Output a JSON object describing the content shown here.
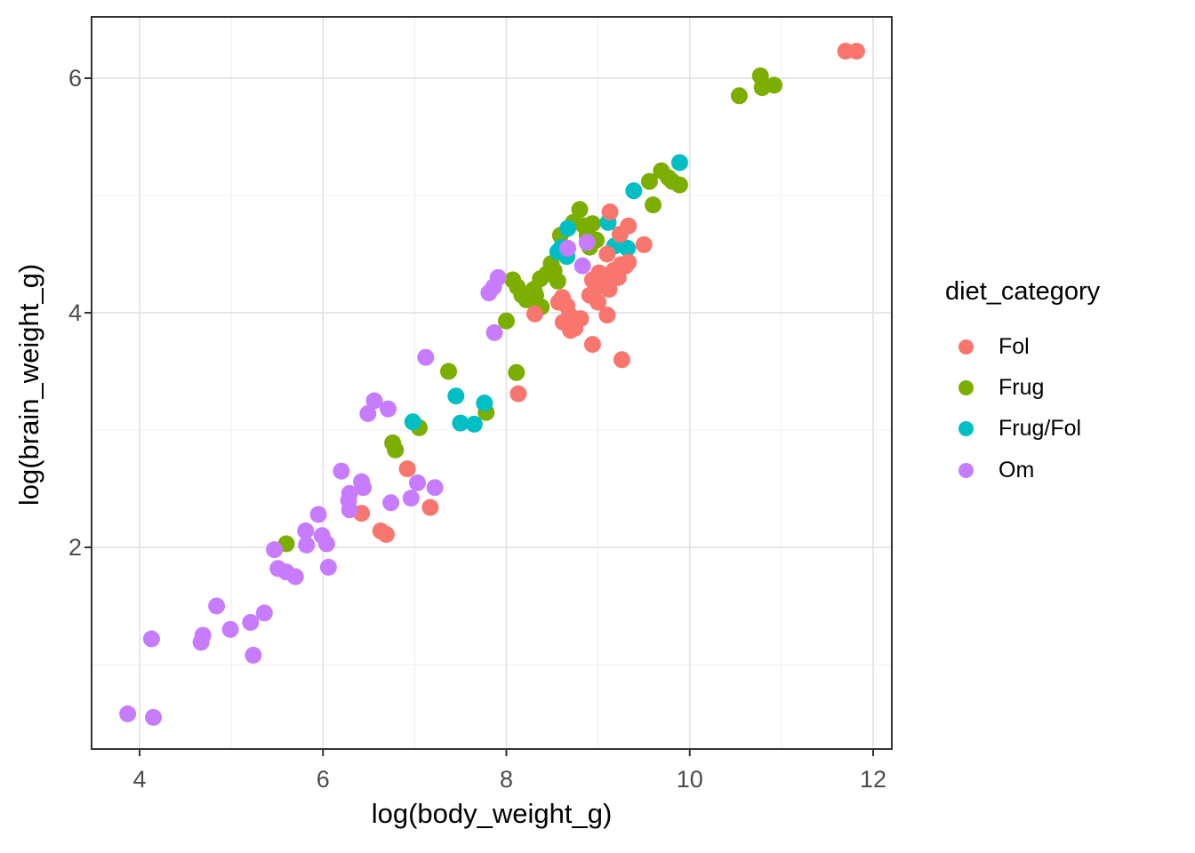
{
  "chart_data": {
    "type": "scatter",
    "title": "",
    "xlabel": "log(body_weight_g)",
    "ylabel": "log(brain_weight_g)",
    "legend_title": "diet_category",
    "legend_position": "right",
    "grid": true,
    "xlim": [
      3.48,
      12.2
    ],
    "ylim": [
      0.28,
      6.55
    ],
    "x_ticks": [
      4,
      6,
      8,
      10,
      12
    ],
    "x_tick_labels": [
      "4",
      "6",
      "8",
      "10",
      "12"
    ],
    "y_ticks": [
      2,
      4,
      6
    ],
    "y_tick_labels": [
      "2",
      "4",
      "6"
    ],
    "x_minor_ticks": [
      5,
      7,
      9,
      11
    ],
    "y_minor_ticks": [
      1,
      3,
      5
    ],
    "colors": {
      "panel_border": "#333333",
      "major_grid": "#e3e3e3",
      "minor_grid": "#efefef",
      "tick_label": "#4d4d4d",
      "tick_mark": "#333333"
    },
    "series": [
      {
        "name": "Fol",
        "color": "#F8766D",
        "points": [
          [
            6.42,
            2.29
          ],
          [
            6.63,
            2.14
          ],
          [
            6.69,
            2.11
          ],
          [
            6.92,
            2.67
          ],
          [
            7.17,
            2.34
          ],
          [
            8.13,
            3.31
          ],
          [
            8.31,
            3.99
          ],
          [
            8.94,
            3.73
          ],
          [
            9.26,
            3.6
          ],
          [
            9.1,
            3.98
          ],
          [
            9.0,
            4.09
          ],
          [
            8.61,
            4.13
          ],
          [
            8.57,
            4.09
          ],
          [
            8.66,
            4.06
          ],
          [
            8.69,
            3.98
          ],
          [
            8.62,
            3.92
          ],
          [
            8.67,
            3.92
          ],
          [
            8.75,
            3.87
          ],
          [
            8.81,
            3.95
          ],
          [
            8.7,
            3.85
          ],
          [
            8.94,
            4.28
          ],
          [
            9.03,
            4.23
          ],
          [
            9.12,
            4.2
          ],
          [
            9.01,
            4.34
          ],
          [
            9.11,
            4.32
          ],
          [
            9.22,
            4.3
          ],
          [
            9.3,
            4.4
          ],
          [
            9.33,
            4.43
          ],
          [
            9.25,
            4.41
          ],
          [
            9.17,
            4.36
          ],
          [
            9.1,
            4.5
          ],
          [
            9.24,
            4.67
          ],
          [
            9.33,
            4.74
          ],
          [
            9.13,
            4.86
          ],
          [
            9.5,
            4.58
          ],
          [
            8.91,
            4.15
          ],
          [
            11.7,
            6.23
          ],
          [
            11.82,
            6.23
          ]
        ]
      },
      {
        "name": "Frug",
        "color": "#7CAE00",
        "points": [
          [
            5.6,
            2.03
          ],
          [
            6.76,
            2.89
          ],
          [
            6.79,
            2.83
          ],
          [
            7.05,
            3.02
          ],
          [
            7.37,
            3.5
          ],
          [
            7.78,
            3.15
          ],
          [
            8.0,
            3.93
          ],
          [
            8.11,
            3.49
          ],
          [
            8.07,
            4.28
          ],
          [
            8.12,
            4.22
          ],
          [
            8.17,
            4.15
          ],
          [
            8.22,
            4.11
          ],
          [
            8.3,
            4.2
          ],
          [
            8.37,
            4.29
          ],
          [
            8.44,
            4.33
          ],
          [
            8.52,
            4.36
          ],
          [
            8.49,
            4.42
          ],
          [
            8.32,
            4.15
          ],
          [
            8.38,
            4.05
          ],
          [
            8.56,
            4.27
          ],
          [
            8.59,
            4.66
          ],
          [
            8.73,
            4.77
          ],
          [
            8.85,
            4.74
          ],
          [
            8.94,
            4.76
          ],
          [
            8.88,
            4.66
          ],
          [
            8.98,
            4.62
          ],
          [
            8.8,
            4.88
          ],
          [
            8.91,
            4.56
          ],
          [
            9.56,
            5.12
          ],
          [
            9.6,
            4.92
          ],
          [
            9.69,
            5.21
          ],
          [
            9.77,
            5.15
          ],
          [
            9.81,
            5.12
          ],
          [
            9.89,
            5.09
          ],
          [
            10.54,
            5.85
          ],
          [
            10.77,
            6.02
          ],
          [
            10.79,
            5.92
          ],
          [
            10.92,
            5.94
          ]
        ]
      },
      {
        "name": "Frug/Fol",
        "color": "#00BFC4",
        "points": [
          [
            6.98,
            3.07
          ],
          [
            7.45,
            3.29
          ],
          [
            7.5,
            3.06
          ],
          [
            7.65,
            3.05
          ],
          [
            7.76,
            3.23
          ],
          [
            8.56,
            4.52
          ],
          [
            8.66,
            4.48
          ],
          [
            8.6,
            4.56
          ],
          [
            8.67,
            4.72
          ],
          [
            9.11,
            4.77
          ],
          [
            9.18,
            4.57
          ],
          [
            9.32,
            4.55
          ],
          [
            9.39,
            5.04
          ],
          [
            9.89,
            5.28
          ]
        ]
      },
      {
        "name": "Om",
        "color": "#C77CFF",
        "points": [
          [
            3.87,
            0.58
          ],
          [
            4.15,
            0.55
          ],
          [
            4.13,
            1.22
          ],
          [
            4.67,
            1.19
          ],
          [
            4.69,
            1.25
          ],
          [
            4.84,
            1.5
          ],
          [
            4.99,
            1.3
          ],
          [
            5.21,
            1.36
          ],
          [
            5.24,
            1.08
          ],
          [
            5.36,
            1.44
          ],
          [
            5.47,
            1.98
          ],
          [
            5.51,
            1.82
          ],
          [
            5.6,
            1.79
          ],
          [
            5.7,
            1.75
          ],
          [
            5.81,
            2.14
          ],
          [
            5.82,
            2.02
          ],
          [
            5.95,
            2.28
          ],
          [
            5.99,
            2.1
          ],
          [
            6.04,
            2.03
          ],
          [
            6.06,
            1.83
          ],
          [
            6.28,
            2.4
          ],
          [
            6.29,
            2.32
          ],
          [
            6.2,
            2.65
          ],
          [
            6.42,
            2.56
          ],
          [
            6.44,
            2.51
          ],
          [
            6.29,
            2.46
          ],
          [
            6.49,
            3.14
          ],
          [
            6.56,
            3.25
          ],
          [
            6.71,
            3.18
          ],
          [
            6.74,
            2.38
          ],
          [
            6.96,
            2.42
          ],
          [
            7.03,
            2.55
          ],
          [
            7.22,
            2.51
          ],
          [
            7.12,
            3.62
          ],
          [
            7.81,
            4.17
          ],
          [
            7.86,
            4.22
          ],
          [
            7.91,
            4.3
          ],
          [
            7.87,
            3.83
          ],
          [
            8.67,
            4.55
          ],
          [
            8.83,
            4.4
          ],
          [
            8.88,
            4.6
          ]
        ]
      }
    ]
  }
}
